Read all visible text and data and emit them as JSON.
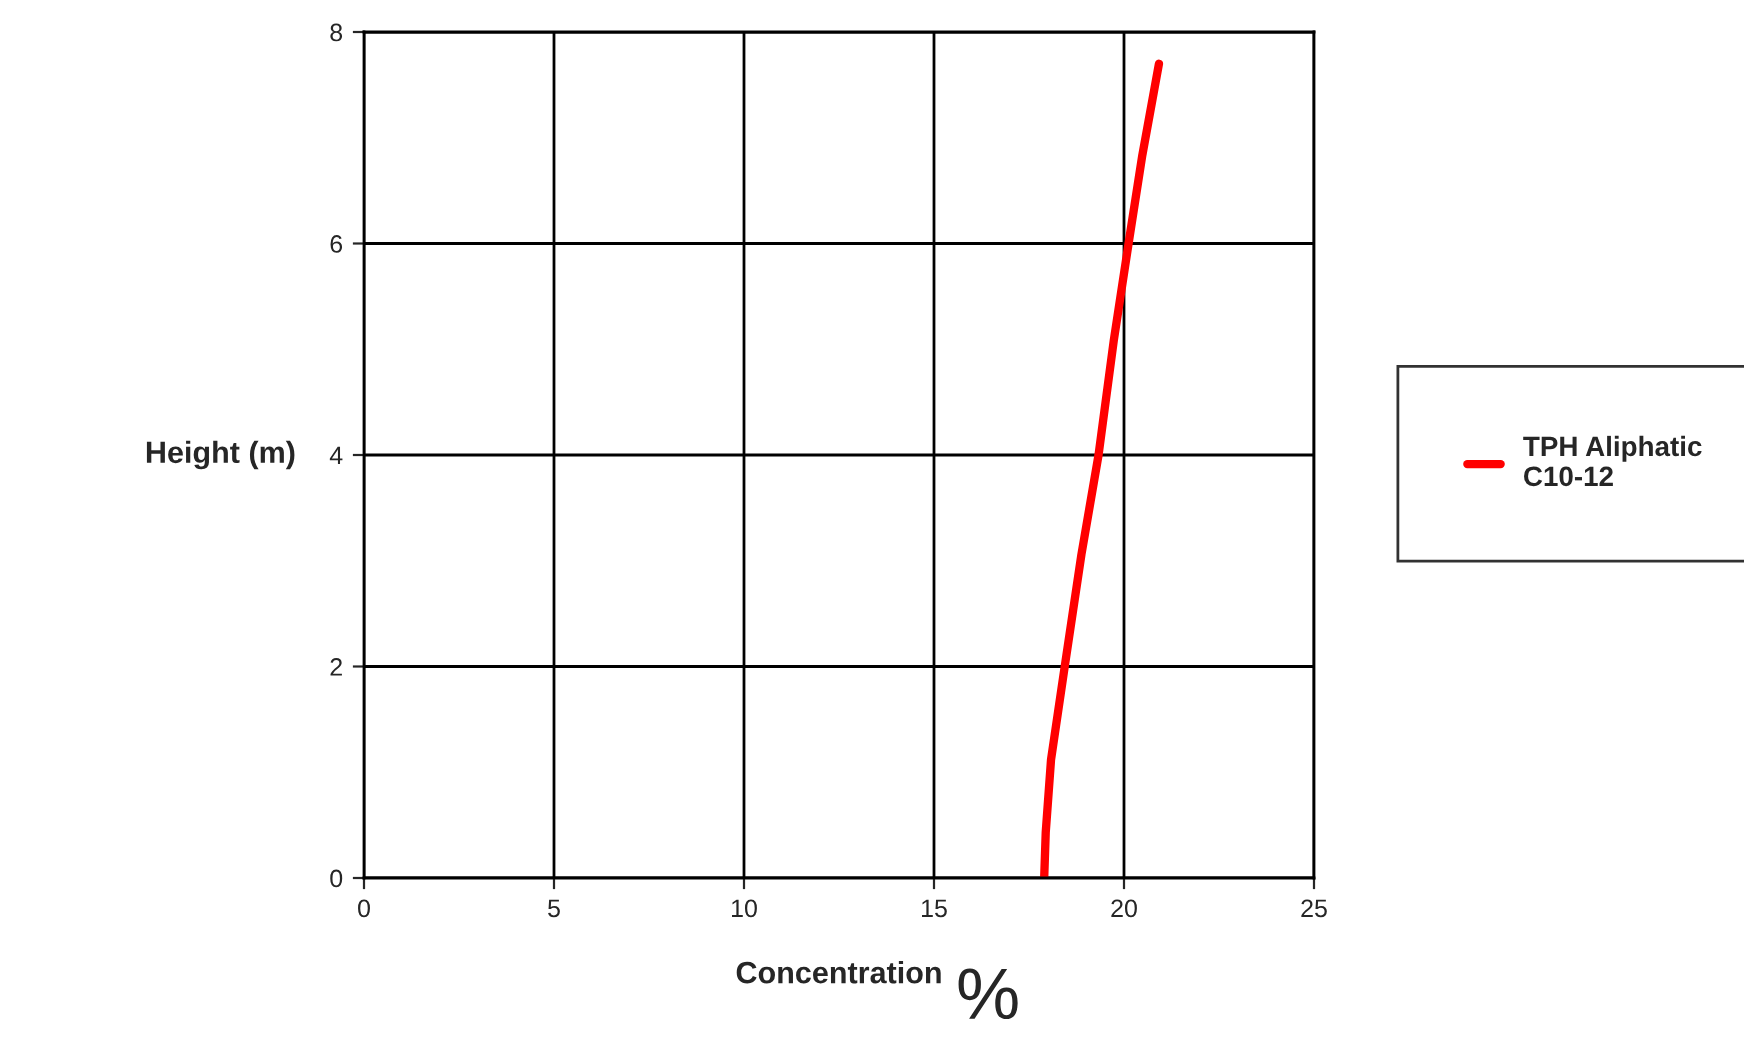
{
  "chart_data": {
    "type": "line",
    "xlabel": "Concentration",
    "ylabel": "Height (m)",
    "annotations": [
      "%"
    ],
    "series": [
      {
        "name": "TPH Aliphatic\nC10-12",
        "color": "#ff0000",
        "x": [
          17.9,
          17.94,
          18.08,
          18.44,
          18.88,
          19.33,
          19.73,
          20.12,
          20.48,
          20.92
        ],
        "values": [
          0,
          0.43,
          1.12,
          2,
          3.06,
          4,
          5.08,
          6,
          6.83,
          7.7
        ]
      }
    ],
    "xlim": [
      0,
      25
    ],
    "xticks": [
      0,
      5,
      10,
      15,
      20,
      25
    ],
    "ylim": [
      0,
      8
    ],
    "yticks": [
      0,
      2,
      4,
      6,
      8
    ],
    "grid": true,
    "legend": "right",
    "marker": "none",
    "line_style": "solid"
  }
}
